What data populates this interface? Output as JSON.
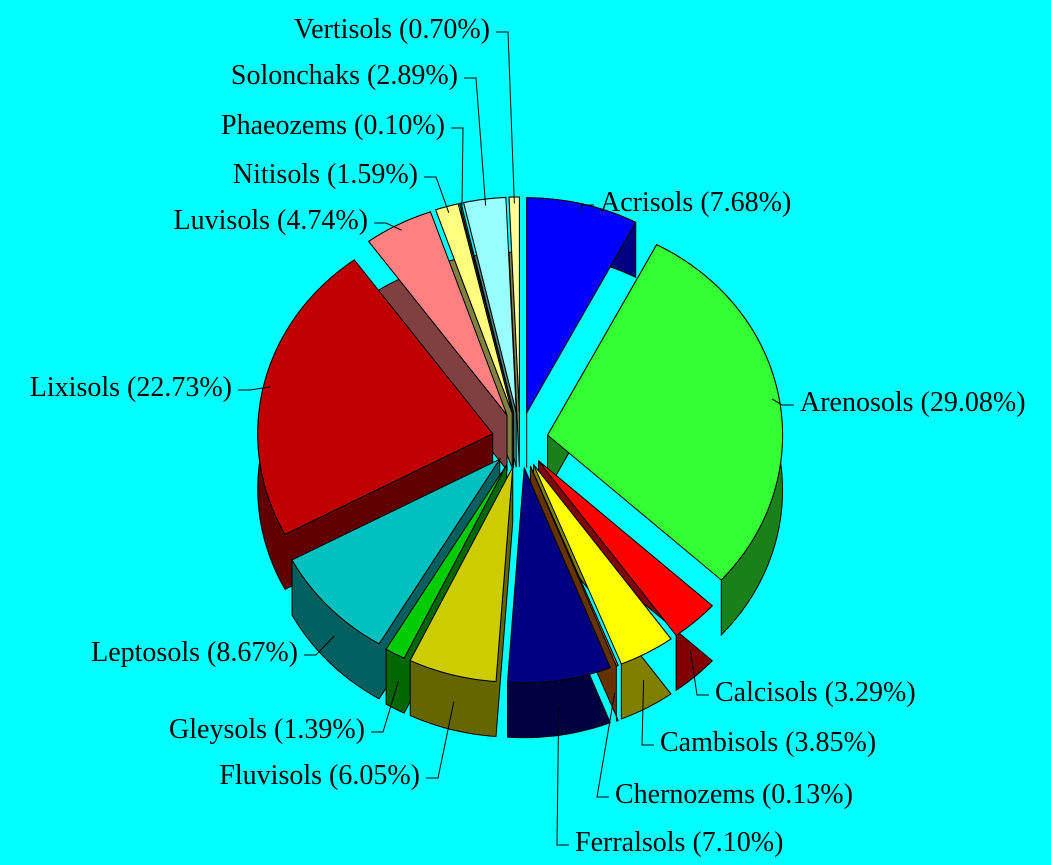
{
  "chart_data": {
    "type": "pie",
    "categories": [
      "Acrisols",
      "Arenosols",
      "Calcisols",
      "Cambisols",
      "Chernozems",
      "Ferralsols",
      "Fluvisols",
      "Gleysols",
      "Leptosols",
      "Lixisols",
      "Luvisols",
      "Nitisols",
      "Phaeozems",
      "Solonchaks",
      "Vertisols"
    ],
    "values": [
      7.68,
      29.08,
      3.29,
      3.85,
      0.13,
      7.1,
      6.05,
      1.39,
      8.67,
      22.73,
      4.74,
      1.59,
      0.1,
      2.89,
      0.7
    ],
    "value_labels": [
      "(7.68%)",
      "(29.08%)",
      "(3.29%)",
      "(3.85%)",
      "(0.13%)",
      "(7.10%)",
      "(6.05%)",
      "(1.39%)",
      "(8.67%)",
      "(22.73%)",
      "(4.74%)",
      "(1.59%)",
      "(0.10%)",
      "(2.89%)",
      "(0.70%)"
    ],
    "colors": [
      "#0000ff",
      "#33ff33",
      "#ff0000",
      "#ffff00",
      "#cc6600",
      "#000080",
      "#cccc00",
      "#00cc00",
      "#00c0c0",
      "#c00000",
      "#ff8080",
      "#ffff80",
      "#808040",
      "#99ffff",
      "#ffff99"
    ]
  }
}
